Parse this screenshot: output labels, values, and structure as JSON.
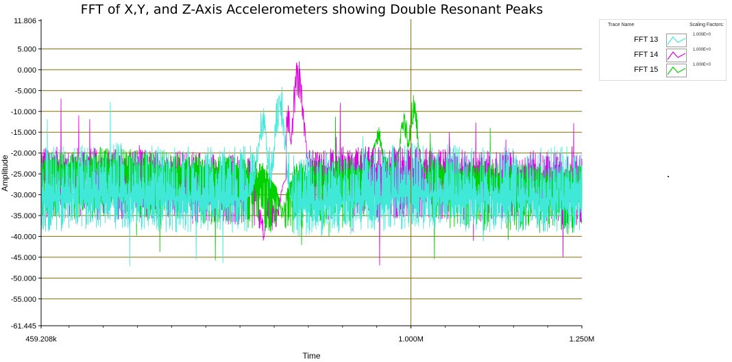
{
  "chart_data": {
    "type": "line",
    "title": "FFT of X,Y, and Z-Axis Accelerometers showing Double Resonant Peaks",
    "xlabel": "Time",
    "ylabel": "Amplitude",
    "xlim": [
      459208,
      1250000
    ],
    "ylim": [
      -61.445,
      11.806
    ],
    "x_ticks": [
      {
        "value": 459208,
        "label": "459.208k"
      },
      {
        "value": 1000000,
        "label": "1.000M"
      },
      {
        "value": 1250000,
        "label": "1.250M"
      }
    ],
    "y_ticks": [
      {
        "value": 11.806,
        "label": "11.806"
      },
      {
        "value": 5,
        "label": "5.000"
      },
      {
        "value": 0,
        "label": "0.000"
      },
      {
        "value": -5,
        "label": "-5.000"
      },
      {
        "value": -10,
        "label": "-10.000"
      },
      {
        "value": -15,
        "label": "-15.000"
      },
      {
        "value": -20,
        "label": "-20.000"
      },
      {
        "value": -25,
        "label": "-25.000"
      },
      {
        "value": -30,
        "label": "-30.000"
      },
      {
        "value": -35,
        "label": "-35.000"
      },
      {
        "value": -40,
        "label": "-40.000"
      },
      {
        "value": -45,
        "label": "-45.000"
      },
      {
        "value": -50,
        "label": "-50.000"
      },
      {
        "value": -55,
        "label": "-55.000"
      },
      {
        "value": -61.445,
        "label": "-61.445"
      }
    ],
    "grid": true,
    "grid_color": "#8b6a00",
    "cursor_x": 1000000,
    "legend": {
      "placement": "right",
      "header_trace": "Trace Name",
      "header_scaling": "Scaling Factors:"
    },
    "series": [
      {
        "name": "FFT 14",
        "color": "#e000e0",
        "scaling": "1.000E+0",
        "baseline": [
          [
            459208,
            -24
          ],
          [
            560000,
            -24.5
          ],
          [
            660000,
            -25
          ],
          [
            750000,
            -26
          ],
          [
            800000,
            -27
          ],
          [
            850000,
            -25
          ],
          [
            900000,
            -24
          ],
          [
            1000000,
            -24
          ],
          [
            1100000,
            -25
          ],
          [
            1200000,
            -25
          ],
          [
            1250000,
            -26
          ]
        ],
        "noise_low": 13,
        "noise_high": 4,
        "peaks": [
          {
            "x": 820000,
            "y": -8
          },
          {
            "x": 834000,
            "y": 5.5
          },
          {
            "x": 838000,
            "y": -1
          }
        ],
        "dips": [
          {
            "x": 784000,
            "y": -41
          },
          {
            "x": 803000,
            "y": -38
          }
        ]
      },
      {
        "name": "FFT 15",
        "color": "#00d000",
        "scaling": "1.000E+0",
        "baseline": [
          [
            459208,
            -24
          ],
          [
            560000,
            -23
          ],
          [
            660000,
            -24
          ],
          [
            750000,
            -25
          ],
          [
            800000,
            -27
          ],
          [
            850000,
            -26
          ],
          [
            950000,
            -25
          ],
          [
            1000000,
            -25
          ],
          [
            1100000,
            -26
          ],
          [
            1200000,
            -27
          ],
          [
            1250000,
            -27
          ]
        ],
        "noise_low": 14,
        "noise_high": 3,
        "peaks": [
          {
            "x": 952000,
            "y": -13
          },
          {
            "x": 990000,
            "y": -10
          },
          {
            "x": 1004000,
            "y": -5.8
          }
        ],
        "dips": [
          {
            "x": 812000,
            "y": -36
          }
        ]
      },
      {
        "name": "FFT 13",
        "color": "#40e8d8",
        "scaling": "1.000E+0",
        "baseline": [
          [
            459208,
            -31
          ],
          [
            560000,
            -30
          ],
          [
            660000,
            -31
          ],
          [
            750000,
            -31
          ],
          [
            785000,
            -30
          ],
          [
            800000,
            -32
          ],
          [
            850000,
            -32
          ],
          [
            950000,
            -31
          ],
          [
            1000000,
            -30
          ],
          [
            1100000,
            -31
          ],
          [
            1200000,
            -31
          ],
          [
            1250000,
            -31
          ]
        ],
        "noise_low": 9,
        "noise_high": 9,
        "peaks": [
          {
            "x": 780000,
            "y": -18
          },
          {
            "x": 783000,
            "y": -8
          },
          {
            "x": 806000,
            "y": -5
          },
          {
            "x": 810000,
            "y": -1.5
          }
        ],
        "dips": []
      }
    ]
  }
}
